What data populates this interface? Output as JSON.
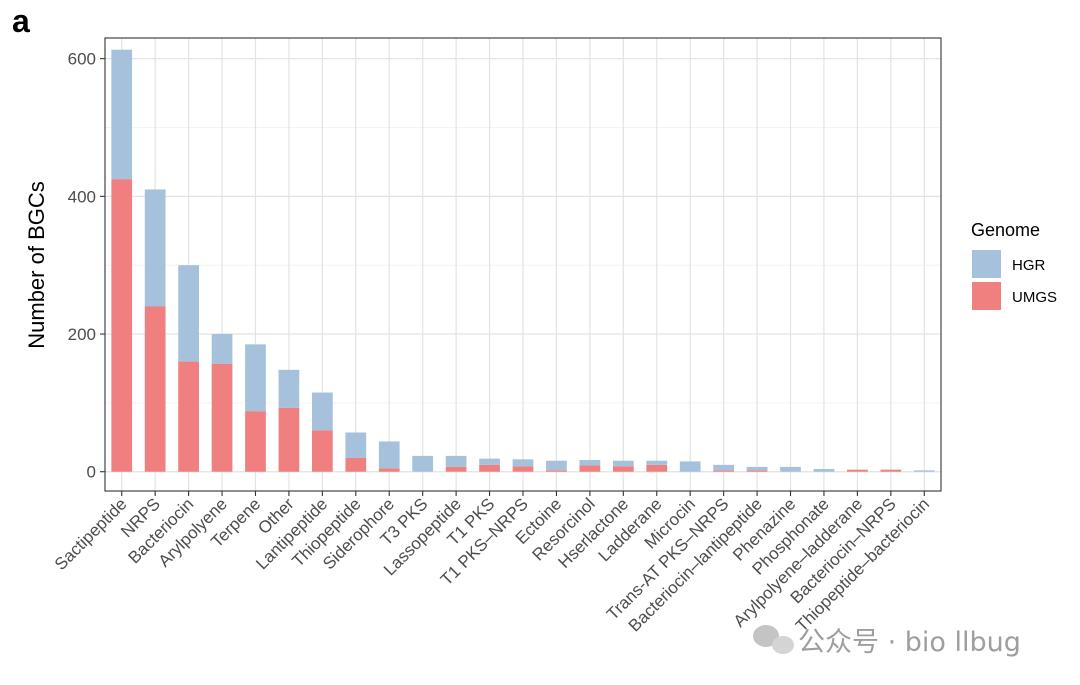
{
  "panel_label": "a",
  "watermark": "公众号 · bio llbug",
  "chart_data": {
    "type": "bar",
    "stacked": true,
    "categories": [
      "Sactipeptide",
      "NRPS",
      "Bacteriocin",
      "Arylpolyene",
      "Terpene",
      "Other",
      "Lantipeptide",
      "Thiopeptide",
      "Siderophore",
      "T3 PKS",
      "Lassopeptide",
      "T1 PKS",
      "T1 PKS–NRPS",
      "Ectoine",
      "Resorcinol",
      "Hserlactone",
      "Ladderane",
      "Microcin",
      "Trans-AT PKS–NRPS",
      "Bacteriocin–lantipeptide",
      "Phenazine",
      "Phosphonate",
      "Arylpolyene–ladderane",
      "Bacteriocin–NRPS",
      "Thiopeptide–bacteriocin"
    ],
    "series": [
      {
        "name": "UMGS",
        "color": "#f08080",
        "values": [
          425,
          240,
          160,
          157,
          88,
          93,
          60,
          20,
          5,
          0,
          7,
          10,
          8,
          2,
          9,
          8,
          10,
          0,
          2,
          2,
          0,
          0,
          3,
          3,
          0
        ]
      },
      {
        "name": "HGR",
        "color": "#a6c1dc",
        "values": [
          188,
          170,
          140,
          43,
          97,
          55,
          55,
          37,
          39,
          23,
          16,
          9,
          10,
          14,
          8,
          8,
          6,
          15,
          8,
          5,
          7,
          4,
          0,
          0,
          2
        ]
      }
    ],
    "xlabel": "",
    "ylabel": "Number of BGCs",
    "ylim": [
      -28,
      630
    ],
    "yticks": [
      0,
      200,
      400,
      600
    ],
    "grid": true,
    "legend": {
      "title": "Genome",
      "position": "right",
      "entries": [
        {
          "name": "HGR",
          "color": "#a6c1dc"
        },
        {
          "name": "UMGS",
          "color": "#f08080"
        }
      ]
    }
  }
}
